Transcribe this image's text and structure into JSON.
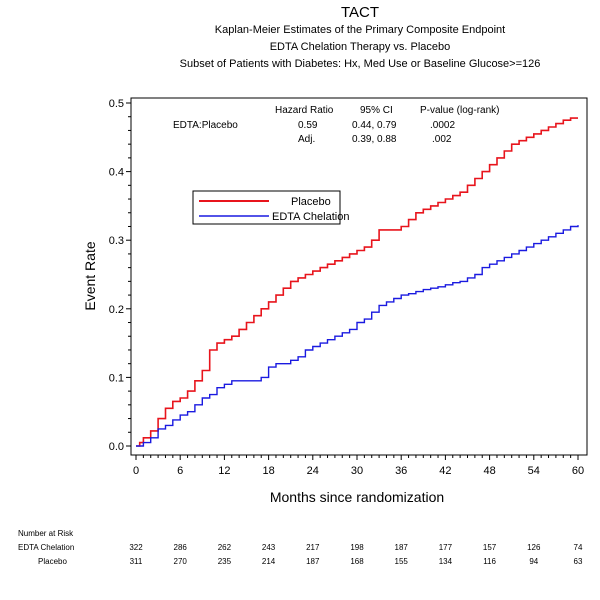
{
  "chart_data": {
    "type": "line",
    "title": "TACT",
    "subtitles": [
      "Kaplan-Meier Estimates of the Primary Composite Endpoint",
      "EDTA Chelation Therapy vs. Placebo",
      "Subset of Patients with Diabetes: Hx, Med Use or Baseline Glucose>=126"
    ],
    "xlabel": "Months since randomization",
    "ylabel": "Event Rate",
    "xlim": [
      0,
      60
    ],
    "ylim": [
      0,
      0.5
    ],
    "xticks": [
      0,
      6,
      12,
      18,
      24,
      30,
      36,
      42,
      48,
      54,
      60
    ],
    "yticks": [
      "0.0",
      "0.1",
      "0.2",
      "0.3",
      "0.4",
      "0.5"
    ],
    "legend_position": "upper-left",
    "series": [
      {
        "name": "Placebo",
        "color": "#e8141c",
        "step": true,
        "points": [
          [
            0,
            0
          ],
          [
            0.5,
            0.005
          ],
          [
            1,
            0.012
          ],
          [
            2,
            0.022
          ],
          [
            3,
            0.04
          ],
          [
            4,
            0.055
          ],
          [
            5,
            0.065
          ],
          [
            6,
            0.07
          ],
          [
            7,
            0.08
          ],
          [
            8,
            0.095
          ],
          [
            9,
            0.11
          ],
          [
            10,
            0.14
          ],
          [
            11,
            0.15
          ],
          [
            12,
            0.155
          ],
          [
            13,
            0.16
          ],
          [
            14,
            0.17
          ],
          [
            15,
            0.18
          ],
          [
            16,
            0.19
          ],
          [
            17,
            0.2
          ],
          [
            18,
            0.21
          ],
          [
            19,
            0.22
          ],
          [
            20,
            0.23
          ],
          [
            21,
            0.24
          ],
          [
            22,
            0.245
          ],
          [
            23,
            0.25
          ],
          [
            24,
            0.255
          ],
          [
            25,
            0.26
          ],
          [
            26,
            0.265
          ],
          [
            27,
            0.27
          ],
          [
            28,
            0.275
          ],
          [
            29,
            0.28
          ],
          [
            30,
            0.285
          ],
          [
            31,
            0.29
          ],
          [
            32,
            0.3
          ],
          [
            33,
            0.315
          ],
          [
            34,
            0.315
          ],
          [
            35,
            0.315
          ],
          [
            36,
            0.32
          ],
          [
            37,
            0.33
          ],
          [
            38,
            0.34
          ],
          [
            39,
            0.345
          ],
          [
            40,
            0.35
          ],
          [
            41,
            0.355
          ],
          [
            42,
            0.36
          ],
          [
            43,
            0.365
          ],
          [
            44,
            0.37
          ],
          [
            45,
            0.38
          ],
          [
            46,
            0.39
          ],
          [
            47,
            0.4
          ],
          [
            48,
            0.41
          ],
          [
            49,
            0.42
          ],
          [
            50,
            0.43
          ],
          [
            51,
            0.44
          ],
          [
            52,
            0.445
          ],
          [
            53,
            0.45
          ],
          [
            54,
            0.455
          ],
          [
            55,
            0.46
          ],
          [
            56,
            0.465
          ],
          [
            57,
            0.47
          ],
          [
            58,
            0.475
          ],
          [
            59,
            0.478
          ],
          [
            60,
            0.478
          ]
        ]
      },
      {
        "name": "EDTA Chelation",
        "color": "#1a1ae0",
        "step": true,
        "points": [
          [
            0,
            0
          ],
          [
            1,
            0.005
          ],
          [
            2,
            0.012
          ],
          [
            3,
            0.025
          ],
          [
            4,
            0.03
          ],
          [
            5,
            0.038
          ],
          [
            6,
            0.045
          ],
          [
            7,
            0.05
          ],
          [
            8,
            0.06
          ],
          [
            9,
            0.07
          ],
          [
            10,
            0.075
          ],
          [
            11,
            0.085
          ],
          [
            12,
            0.09
          ],
          [
            13,
            0.095
          ],
          [
            14,
            0.095
          ],
          [
            15,
            0.095
          ],
          [
            16,
            0.095
          ],
          [
            17,
            0.1
          ],
          [
            18,
            0.115
          ],
          [
            19,
            0.12
          ],
          [
            20,
            0.12
          ],
          [
            21,
            0.125
          ],
          [
            22,
            0.13
          ],
          [
            23,
            0.14
          ],
          [
            24,
            0.145
          ],
          [
            25,
            0.15
          ],
          [
            26,
            0.155
          ],
          [
            27,
            0.16
          ],
          [
            28,
            0.165
          ],
          [
            29,
            0.17
          ],
          [
            30,
            0.18
          ],
          [
            31,
            0.185
          ],
          [
            32,
            0.195
          ],
          [
            33,
            0.205
          ],
          [
            34,
            0.21
          ],
          [
            35,
            0.215
          ],
          [
            36,
            0.22
          ],
          [
            37,
            0.222
          ],
          [
            38,
            0.225
          ],
          [
            39,
            0.228
          ],
          [
            40,
            0.23
          ],
          [
            41,
            0.232
          ],
          [
            42,
            0.235
          ],
          [
            43,
            0.238
          ],
          [
            44,
            0.24
          ],
          [
            45,
            0.245
          ],
          [
            46,
            0.25
          ],
          [
            47,
            0.26
          ],
          [
            48,
            0.265
          ],
          [
            49,
            0.27
          ],
          [
            50,
            0.275
          ],
          [
            51,
            0.28
          ],
          [
            52,
            0.285
          ],
          [
            53,
            0.29
          ],
          [
            54,
            0.295
          ],
          [
            55,
            0.3
          ],
          [
            56,
            0.305
          ],
          [
            57,
            0.31
          ],
          [
            58,
            0.315
          ],
          [
            59,
            0.32
          ],
          [
            60,
            0.322
          ]
        ]
      }
    ],
    "stats_table": {
      "headers": [
        "Hazard Ratio",
        "95% CI",
        "P-value (log-rank)"
      ],
      "rows": [
        {
          "label": "EDTA:Placebo",
          "hr": "0.59",
          "ci": "0.44, 0.79",
          "p": ".0002"
        },
        {
          "label": "Adj.",
          "hr": "",
          "ci": "0.39, 0.88",
          "p": ".002"
        }
      ]
    },
    "number_at_risk": {
      "title": "Number at Risk",
      "rows": [
        {
          "label": "EDTA Chelation",
          "values": [
            "322",
            "286",
            "262",
            "243",
            "217",
            "198",
            "187",
            "177",
            "157",
            "126",
            "74"
          ]
        },
        {
          "label": "Placebo",
          "values": [
            "311",
            "270",
            "235",
            "214",
            "187",
            "168",
            "155",
            "134",
            "116",
            "94",
            "63"
          ]
        }
      ]
    }
  }
}
